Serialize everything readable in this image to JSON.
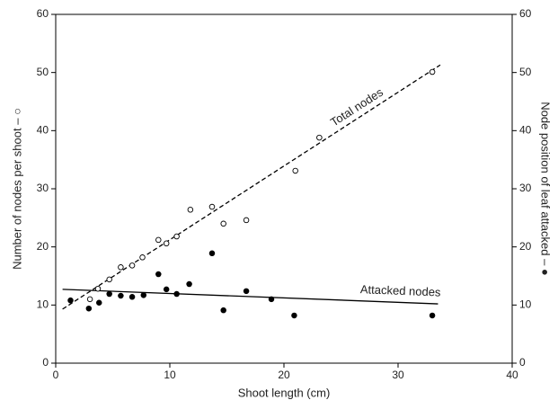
{
  "chart_data": {
    "type": "scatter",
    "x_label": "Shoot length (cm)",
    "y_label": "Number of nodes per shoot – ○",
    "y2_label": "Node position of leaf attacked – ●",
    "xlim": [
      0,
      40
    ],
    "xticks": [
      0,
      10,
      20,
      30,
      40
    ],
    "ylim": [
      0,
      60
    ],
    "yticks": [
      0,
      10,
      20,
      30,
      40,
      50,
      60
    ],
    "y2lim": [
      0,
      60
    ],
    "y2ticks": [
      0,
      10,
      20,
      30,
      40,
      50,
      60
    ],
    "series": [
      {
        "marker": "open",
        "color": "#000000",
        "x": [
          3.0,
          3.7,
          4.7,
          5.7,
          6.7,
          7.6,
          9.0,
          9.7,
          10.6,
          11.8,
          13.7,
          14.7,
          16.7,
          21.0,
          23.1,
          33.0
        ],
        "values": [
          11.0,
          12.8,
          14.4,
          16.5,
          16.8,
          18.2,
          21.2,
          20.6,
          21.8,
          26.4,
          26.9,
          24.0,
          24.6,
          33.1,
          38.8,
          50.1
        ]
      },
      {
        "marker": "filled",
        "color": "#000000",
        "axis": "y2",
        "x": [
          1.3,
          2.9,
          3.8,
          4.7,
          5.7,
          6.7,
          7.7,
          9.0,
          9.7,
          10.6,
          11.7,
          13.7,
          14.7,
          16.7,
          18.9,
          20.9,
          33.0
        ],
        "values": [
          10.8,
          9.4,
          10.4,
          11.9,
          11.6,
          11.4,
          11.7,
          15.3,
          12.7,
          11.9,
          13.6,
          18.9,
          9.1,
          12.4,
          11.0,
          8.2,
          8.2
        ]
      }
    ],
    "trend_lines": [
      {
        "name": "Total nodes",
        "dash": true,
        "color": "#000000",
        "x": [
          0.6,
          33.7
        ],
        "values": [
          9.3,
          51.3
        ]
      },
      {
        "name": "Attacked nodes",
        "dash": false,
        "color": "#000000",
        "axis": "y2",
        "x": [
          0.6,
          33.5
        ],
        "values": [
          12.7,
          10.2
        ]
      }
    ]
  }
}
